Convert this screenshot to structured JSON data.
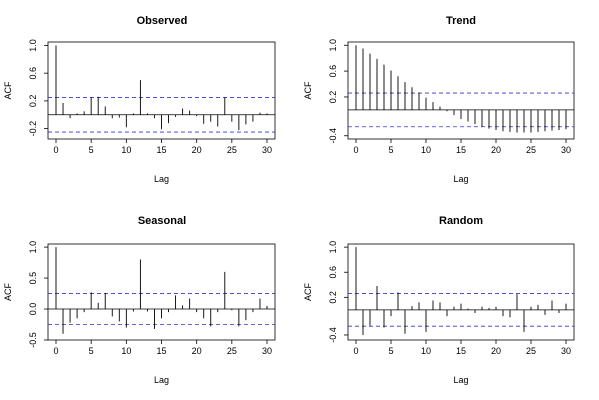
{
  "chart_data": [
    {
      "type": "bar",
      "title": "Observed",
      "xlabel": "Lag",
      "ylabel": "ACF",
      "xlim": [
        0,
        30
      ],
      "ylim": [
        -0.35,
        1.05
      ],
      "xticks": [
        "0",
        "5",
        "10",
        "15",
        "20",
        "25",
        "30"
      ],
      "yticks": [
        "-0.2",
        "0.2",
        "0.6",
        "1.0"
      ],
      "conf_band": 0.25,
      "lags": [
        0,
        1,
        2,
        3,
        4,
        5,
        6,
        7,
        8,
        9,
        10,
        11,
        12,
        13,
        14,
        15,
        16,
        17,
        18,
        19,
        20,
        21,
        22,
        23,
        24,
        25,
        26,
        27,
        28,
        29,
        30
      ],
      "values": [
        1.0,
        0.17,
        -0.05,
        0.02,
        0.05,
        0.25,
        0.26,
        0.12,
        -0.05,
        -0.04,
        -0.18,
        0.02,
        0.5,
        0.02,
        -0.05,
        -0.21,
        -0.12,
        -0.03,
        0.09,
        0.06,
        -0.02,
        -0.13,
        -0.1,
        -0.17,
        0.25,
        -0.1,
        -0.22,
        -0.14,
        -0.1,
        0.03,
        0.02
      ]
    },
    {
      "type": "bar",
      "title": "Trend",
      "xlabel": "Lag",
      "ylabel": "ACF",
      "xlim": [
        0,
        30
      ],
      "ylim": [
        -0.45,
        1.05
      ],
      "xticks": [
        "0",
        "5",
        "10",
        "15",
        "20",
        "25",
        "30"
      ],
      "yticks": [
        "-0.4",
        "0.2",
        "0.6",
        "1.0"
      ],
      "conf_band": 0.26,
      "lags": [
        0,
        1,
        2,
        3,
        4,
        5,
        6,
        7,
        8,
        9,
        10,
        11,
        12,
        13,
        14,
        15,
        16,
        17,
        18,
        19,
        20,
        21,
        22,
        23,
        24,
        25,
        26,
        27,
        28,
        29,
        30
      ],
      "values": [
        1.0,
        0.95,
        0.87,
        0.79,
        0.7,
        0.61,
        0.52,
        0.43,
        0.35,
        0.27,
        0.19,
        0.12,
        0.05,
        -0.02,
        -0.08,
        -0.14,
        -0.18,
        -0.22,
        -0.26,
        -0.29,
        -0.31,
        -0.33,
        -0.34,
        -0.35,
        -0.35,
        -0.35,
        -0.34,
        -0.33,
        -0.32,
        -0.31,
        -0.3
      ]
    },
    {
      "type": "bar",
      "title": "Seasonal",
      "xlabel": "Lag",
      "ylabel": "ACF",
      "xlim": [
        0,
        30
      ],
      "ylim": [
        -0.5,
        1.05
      ],
      "xticks": [
        "0",
        "5",
        "10",
        "15",
        "20",
        "25",
        "30"
      ],
      "yticks": [
        "-0.5",
        "0.0",
        "0.5",
        "1.0"
      ],
      "conf_band": 0.25,
      "lags": [
        0,
        1,
        2,
        3,
        4,
        5,
        6,
        7,
        8,
        9,
        10,
        11,
        12,
        13,
        14,
        15,
        16,
        17,
        18,
        19,
        20,
        21,
        22,
        23,
        24,
        25,
        26,
        27,
        28,
        29,
        30
      ],
      "values": [
        1.0,
        -0.4,
        -0.22,
        -0.15,
        -0.05,
        0.27,
        0.1,
        0.26,
        -0.12,
        -0.2,
        -0.3,
        -0.04,
        0.8,
        -0.04,
        -0.32,
        -0.15,
        -0.05,
        0.22,
        0.06,
        0.17,
        -0.05,
        -0.15,
        -0.28,
        -0.05,
        0.6,
        -0.02,
        -0.28,
        -0.18,
        -0.05,
        0.17,
        0.05
      ]
    },
    {
      "type": "bar",
      "title": "Random",
      "xlabel": "Lag",
      "ylabel": "ACF",
      "xlim": [
        0,
        30
      ],
      "ylim": [
        -0.48,
        1.05
      ],
      "xticks": [
        "0",
        "5",
        "10",
        "15",
        "20",
        "25",
        "30"
      ],
      "yticks": [
        "-0.4",
        "0.2",
        "0.6",
        "1.0"
      ],
      "conf_band": 0.26,
      "lags": [
        0,
        1,
        2,
        3,
        4,
        5,
        6,
        7,
        8,
        9,
        10,
        11,
        12,
        13,
        14,
        15,
        16,
        17,
        18,
        19,
        20,
        21,
        22,
        23,
        24,
        25,
        26,
        27,
        28,
        29,
        30
      ],
      "values": [
        1.0,
        -0.4,
        -0.25,
        0.38,
        -0.28,
        -0.1,
        0.28,
        -0.38,
        0.06,
        0.12,
        -0.35,
        0.15,
        0.12,
        -0.1,
        0.05,
        0.1,
        0.02,
        -0.05,
        0.05,
        0.03,
        0.05,
        -0.1,
        -0.12,
        0.25,
        -0.35,
        0.05,
        0.08,
        -0.08,
        0.15,
        -0.05,
        0.1
      ]
    }
  ]
}
